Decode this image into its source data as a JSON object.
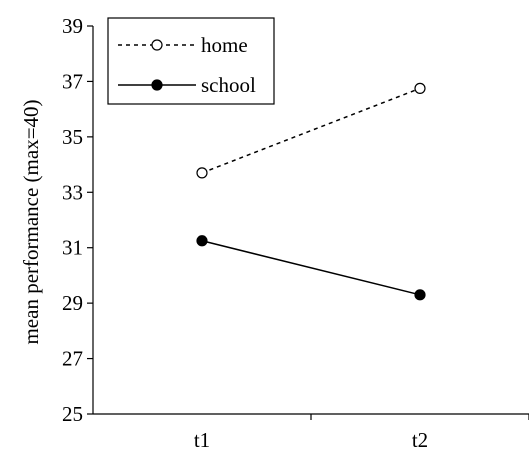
{
  "chart_data": {
    "type": "line",
    "title": "",
    "xlabel": "",
    "ylabel": "mean performance (max=40)",
    "categories": [
      "t1",
      "t2"
    ],
    "ylim": [
      25,
      39
    ],
    "yticks": [
      25,
      27,
      29,
      31,
      33,
      35,
      37,
      39
    ],
    "grid": false,
    "legend_position": "top-left",
    "series": [
      {
        "name": "home",
        "values": [
          33.7,
          36.75
        ],
        "line_style": "dotted",
        "marker": "open-circle",
        "color": "#000000"
      },
      {
        "name": "school",
        "values": [
          31.25,
          29.3
        ],
        "line_style": "solid",
        "marker": "filled-circle",
        "color": "#000000"
      }
    ]
  }
}
